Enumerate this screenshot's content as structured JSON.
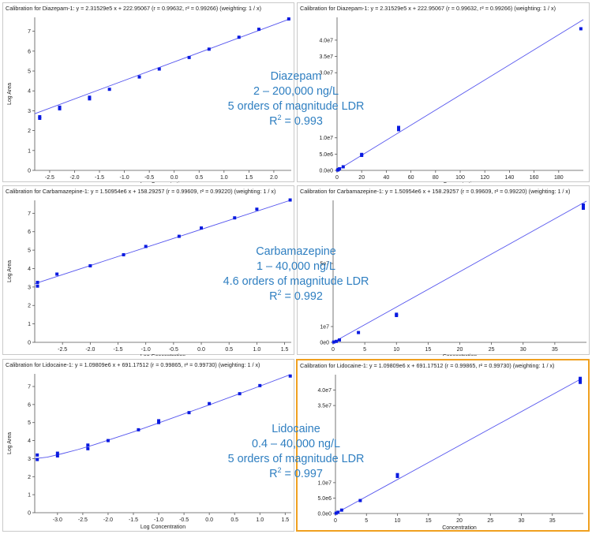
{
  "charts": [
    {
      "title": "Calibration for Diazepam-1: y = 2.31529e5 x + 222.95067 (r = 0.99632, r² = 0.99266) (weighting: 1 / x)",
      "compound": "Diazepam",
      "range": "2 – 200,000 ng/L",
      "ldr": "5 orders of magnitude LDR",
      "r2": "0.993",
      "log": {
        "title": "Calibration for Diazepam-1: y = 2.31529e5 x + 222.95067 (r = 0.99632, r² = 0.99266) (weighting: 1 / x)",
        "xlabel": "Log Concentration",
        "ylabel": "Log Area",
        "xlim": [
          -2.8,
          2.35
        ],
        "ylim": [
          0,
          7.7
        ],
        "xticks": [
          -2.5,
          -2.0,
          -1.5,
          -1.0,
          -0.5,
          0.0,
          0.5,
          1.0,
          1.5,
          2.0
        ],
        "xtick_labels": [
          "-2.5",
          "-2.0",
          "-1.5",
          "-1.0",
          "-0.5",
          "0.0",
          "0.5",
          "1.0",
          "1.5",
          "2.0"
        ],
        "yticks": [
          0,
          1,
          2,
          3,
          4,
          5,
          6,
          7
        ],
        "ytick_labels": [
          "0",
          "1",
          "2",
          "3",
          "4",
          "5",
          "6",
          "7"
        ],
        "line": [
          [
            -2.8,
            2.85
          ],
          [
            2.33,
            7.63
          ]
        ],
        "points": [
          [
            -2.7,
            2.62
          ],
          [
            -2.7,
            2.7
          ],
          [
            -2.3,
            3.1
          ],
          [
            -2.3,
            3.18
          ],
          [
            -1.7,
            3.6
          ],
          [
            -1.7,
            3.68
          ],
          [
            -1.3,
            4.08
          ],
          [
            -0.7,
            4.7
          ],
          [
            -0.3,
            5.1
          ],
          [
            0.3,
            5.68
          ],
          [
            0.7,
            6.1
          ],
          [
            1.3,
            6.7
          ],
          [
            1.7,
            7.1
          ],
          [
            2.3,
            7.62
          ]
        ]
      },
      "lin": {
        "title": "Calibration for Diazepam-1: y = 2.31529e5 x + 222.95067 (r = 0.99632, r² = 0.99266) (weighting: 1 / x)",
        "xlabel": "Concentration",
        "xlim": [
          0,
          200
        ],
        "ylim": [
          0,
          47000000.0
        ],
        "xticks": [
          0,
          20,
          40,
          60,
          80,
          100,
          120,
          140,
          160,
          180
        ],
        "xtick_labels": [
          "0",
          "20",
          "40",
          "60",
          "80",
          "100",
          "120",
          "140",
          "160",
          "180"
        ],
        "yticks": [
          0,
          5000000.0,
          10000000.0,
          30000000.0,
          35000000.0,
          40000000.0
        ],
        "ytick_labels": [
          "0.0e0",
          "5.0e6",
          "1.0e7",
          "3.0e7",
          "3.5e7",
          "4.0e7"
        ],
        "line": [
          [
            0,
            0
          ],
          [
            200,
            46300000.0
          ]
        ],
        "points": [
          [
            0.5,
            100000.0
          ],
          [
            1,
            250000.0
          ],
          [
            2,
            500000.0
          ],
          [
            5,
            1100000.0
          ],
          [
            20,
            4600000.0
          ],
          [
            20,
            4900000.0
          ],
          [
            50,
            12500000.0
          ],
          [
            50,
            13200000.0
          ],
          [
            198,
            43500000.0
          ]
        ]
      }
    },
    {
      "title": "Calibration for Carbamazepine-1: y = 1.50954e6 x + 158.29257 (r = 0.99609, r² = 0.99220) (weighting: 1 / x)",
      "compound": "Carbamazepine",
      "range": "1 – 40,000 ng/L",
      "ldr": "4.6 orders of magnitude LDR",
      "r2": "0.992",
      "log": {
        "title": "Calibration for Carbamazepine-1: y = 1.50954e6 x + 158.29257 (r = 0.99609, r² = 0.99220) (weighting: 1 / x)",
        "xlabel": "Log Concentration",
        "ylabel": "Log Area",
        "xlim": [
          -3.0,
          1.62
        ],
        "ylim": [
          0,
          7.7
        ],
        "xticks": [
          -2.5,
          -2.0,
          -1.5,
          -1.0,
          -0.5,
          0.0,
          0.5,
          1.0,
          1.5
        ],
        "xtick_labels": [
          "-2.5",
          "-2.0",
          "-1.5",
          "-1.0",
          "-0.5",
          "0.0",
          "0.5",
          "1.0",
          "1.5"
        ],
        "yticks": [
          0,
          1,
          2,
          3,
          4,
          5,
          6,
          7
        ],
        "ytick_labels": [
          "0",
          "1",
          "2",
          "3",
          "4",
          "5",
          "6",
          "7"
        ],
        "line": [
          [
            -3.0,
            3.18
          ],
          [
            1.6,
            7.7
          ]
        ],
        "points": [
          [
            -2.95,
            3.05
          ],
          [
            -2.95,
            3.25
          ],
          [
            -2.6,
            3.7
          ],
          [
            -2.0,
            4.15
          ],
          [
            -1.4,
            4.75
          ],
          [
            -1.0,
            5.2
          ],
          [
            -0.4,
            5.75
          ],
          [
            0.0,
            6.2
          ],
          [
            0.6,
            6.75
          ],
          [
            1.0,
            7.22
          ],
          [
            1.6,
            7.72
          ]
        ]
      },
      "lin": {
        "title": "Calibration for Carbamazepine-1: y = 1.50954e6 x + 158.29257 (r = 0.99609, r² = 0.99220) (weighting: 1 / x)",
        "xlabel": "Concentration",
        "xlim": [
          0,
          40
        ],
        "ylim": [
          0,
          90000000.0
        ],
        "xticks": [
          0,
          5,
          10,
          15,
          20,
          25,
          30,
          35
        ],
        "xtick_labels": [
          "0",
          "5",
          "10",
          "15",
          "20",
          "25",
          "30",
          "35"
        ],
        "yticks": [
          0,
          10000000.0,
          50000000.0
        ],
        "ytick_labels": [
          "0e0",
          "1e7",
          "5e7"
        ],
        "line": [
          [
            0,
            0
          ],
          [
            40,
            89500000.0
          ]
        ],
        "points": [
          [
            0.1,
            200000.0
          ],
          [
            0.5,
            600000.0
          ],
          [
            1,
            1500000.0
          ],
          [
            4,
            6200000.0
          ],
          [
            10,
            17000000.0
          ],
          [
            10,
            17800000.0
          ],
          [
            39.5,
            85000000.0
          ],
          [
            39.5,
            87000000.0
          ]
        ]
      }
    },
    {
      "title": "Calibration for Lidocaine-1: y = 1.09809e6 x + 691.17512 (r = 0.99865, r² = 0.99730) (weighting: 1 / x)",
      "compound": "Lidocaine",
      "range": "0.4 – 40,000 ng/L",
      "ldr": "5 orders of magnitude LDR",
      "r2": "0.997",
      "log": {
        "title": "Calibration for Lidocaine-1: y = 1.09809e6 x + 691.17512 (r = 0.99865, r² = 0.99730) (weighting: 1 / x)",
        "xlabel": "Log Concentration",
        "ylabel": "Log Area",
        "xlim": [
          -3.45,
          1.62
        ],
        "ylim": [
          0,
          7.7
        ],
        "xticks": [
          -3.0,
          -2.5,
          -2.0,
          -1.5,
          -1.0,
          -0.5,
          0.0,
          0.5,
          1.0,
          1.5
        ],
        "xtick_labels": [
          "-3.0",
          "-2.5",
          "-2.0",
          "-1.5",
          "-1.0",
          "-0.5",
          "0.0",
          "0.5",
          "1.0",
          "1.5"
        ],
        "yticks": [
          0,
          1,
          2,
          3,
          4,
          5,
          6,
          7
        ],
        "ytick_labels": [
          "0",
          "1",
          "2",
          "3",
          "4",
          "5",
          "6",
          "7"
        ],
        "curve": [
          [
            -3.45,
            3.0
          ],
          [
            -3.2,
            3.08
          ],
          [
            -2.9,
            3.28
          ],
          [
            -2.6,
            3.5
          ],
          [
            -2.3,
            3.75
          ],
          [
            -2.0,
            4.02
          ],
          [
            -1.5,
            4.48
          ],
          [
            -1.0,
            4.98
          ],
          [
            -0.5,
            5.48
          ],
          [
            0.0,
            5.98
          ],
          [
            0.5,
            6.5
          ],
          [
            1.0,
            7.02
          ],
          [
            1.6,
            7.66
          ]
        ],
        "points": [
          [
            -3.4,
            2.95
          ],
          [
            -3.4,
            3.2
          ],
          [
            -3.0,
            3.15
          ],
          [
            -3.0,
            3.3
          ],
          [
            -2.4,
            3.55
          ],
          [
            -2.4,
            3.75
          ],
          [
            -2.0,
            4.0
          ],
          [
            -1.4,
            4.6
          ],
          [
            -1.0,
            5.0
          ],
          [
            -1.0,
            5.1
          ],
          [
            -0.4,
            5.55
          ],
          [
            0.0,
            6.05
          ],
          [
            0.6,
            6.6
          ],
          [
            1.0,
            7.05
          ],
          [
            1.6,
            7.58
          ]
        ]
      },
      "lin": {
        "title": "Calibration for Lidocaine-1: y = 1.09809e6 x + 691.17512 (r = 0.99865, r² = 0.99730) (weighting: 1 / x)",
        "xlabel": "Concentration",
        "xlim": [
          0,
          40
        ],
        "ylim": [
          0,
          45000000.0
        ],
        "xticks": [
          0,
          5,
          10,
          15,
          20,
          25,
          30,
          35
        ],
        "xtick_labels": [
          "0",
          "5",
          "10",
          "15",
          "20",
          "25",
          "30",
          "35"
        ],
        "yticks": [
          0,
          5000000.0,
          10000000.0,
          35000000.0,
          40000000.0
        ],
        "ytick_labels": [
          "0.0e0",
          "5.0e6",
          "1.0e7",
          "3.5e7",
          "4.0e7"
        ],
        "line": [
          [
            0,
            0
          ],
          [
            39.6,
            43600000.0
          ]
        ],
        "points": [
          [
            0.1,
            100000.0
          ],
          [
            0.4,
            400000.0
          ],
          [
            1,
            1100000.0
          ],
          [
            4,
            4200000.0
          ],
          [
            10,
            12000000.0
          ],
          [
            10,
            12600000.0
          ],
          [
            39.5,
            42500000.0
          ],
          [
            39.5,
            43200000.0
          ],
          [
            39.5,
            43800000.0
          ]
        ]
      }
    }
  ],
  "chart_data": [
    {
      "type": "scatter",
      "title": "Calibration for Diazepam-1: y = 2.31529e5 x + 222.95067 (r = 0.99632, r² = 0.99266) (weighting: 1 / x)",
      "xlabel": "Log Concentration",
      "ylabel": "Log Area",
      "xlim": [
        -2.8,
        2.35
      ],
      "ylim": [
        0,
        7.7
      ],
      "series": [
        {
          "values": [
            [
              -2.7,
              2.62
            ],
            [
              -2.7,
              2.7
            ],
            [
              -2.3,
              3.1
            ],
            [
              -2.3,
              3.18
            ],
            [
              -1.7,
              3.6
            ],
            [
              -1.7,
              3.68
            ],
            [
              -1.3,
              4.08
            ],
            [
              -0.7,
              4.7
            ],
            [
              -0.3,
              5.1
            ],
            [
              0.3,
              5.68
            ],
            [
              0.7,
              6.1
            ],
            [
              1.3,
              6.7
            ],
            [
              1.7,
              7.1
            ],
            [
              2.3,
              7.62
            ]
          ]
        }
      ]
    },
    {
      "type": "scatter",
      "title": "Calibration for Diazepam-1: y = 2.31529e5 x + 222.95067 (r = 0.99632, r² = 0.99266) (weighting: 1 / x)",
      "xlabel": "Concentration",
      "xlim": [
        0,
        200
      ],
      "ylim": [
        0,
        47000000.0
      ],
      "series": [
        {
          "values": [
            [
              0.5,
              100000.0
            ],
            [
              1,
              250000.0
            ],
            [
              2,
              500000.0
            ],
            [
              5,
              1100000.0
            ],
            [
              20,
              4600000.0
            ],
            [
              20,
              4900000.0
            ],
            [
              50,
              12500000.0
            ],
            [
              50,
              13200000.0
            ],
            [
              198,
              43500000.0
            ]
          ]
        }
      ]
    },
    {
      "type": "scatter",
      "title": "Calibration for Carbamazepine-1: y = 1.50954e6 x + 158.29257 (r = 0.99609, r² = 0.99220) (weighting: 1 / x)",
      "xlabel": "Log Concentration",
      "ylabel": "Log Area",
      "xlim": [
        -3.0,
        1.62
      ],
      "ylim": [
        0,
        7.7
      ],
      "series": [
        {
          "values": [
            [
              -2.95,
              3.05
            ],
            [
              -2.95,
              3.25
            ],
            [
              -2.6,
              3.7
            ],
            [
              -2.0,
              4.15
            ],
            [
              -1.4,
              4.75
            ],
            [
              -1.0,
              5.2
            ],
            [
              -0.4,
              5.75
            ],
            [
              0.0,
              6.2
            ],
            [
              0.6,
              6.75
            ],
            [
              1.0,
              7.22
            ],
            [
              1.6,
              7.72
            ]
          ]
        }
      ]
    },
    {
      "type": "scatter",
      "title": "Calibration for Carbamazepine-1: y = 1.50954e6 x + 158.29257 (r = 0.99609, r² = 0.99220) (weighting: 1 / x)",
      "xlabel": "Concentration",
      "xlim": [
        0,
        40
      ],
      "ylim": [
        0,
        90000000.0
      ],
      "series": [
        {
          "values": [
            [
              0.1,
              200000.0
            ],
            [
              0.5,
              600000.0
            ],
            [
              1,
              1500000.0
            ],
            [
              4,
              6200000.0
            ],
            [
              10,
              17000000.0
            ],
            [
              10,
              17800000.0
            ],
            [
              39.5,
              85000000.0
            ],
            [
              39.5,
              87000000.0
            ]
          ]
        }
      ]
    },
    {
      "type": "scatter",
      "title": "Calibration for Lidocaine-1: y = 1.09809e6 x + 691.17512 (r = 0.99865, r² = 0.99730) (weighting: 1 / x)",
      "xlabel": "Log Concentration",
      "ylabel": "Log Area",
      "xlim": [
        -3.45,
        1.62
      ],
      "ylim": [
        0,
        7.7
      ],
      "series": [
        {
          "values": [
            [
              -3.4,
              2.95
            ],
            [
              -3.4,
              3.2
            ],
            [
              -3.0,
              3.15
            ],
            [
              -3.0,
              3.3
            ],
            [
              -2.4,
              3.55
            ],
            [
              -2.4,
              3.75
            ],
            [
              -2.0,
              4.0
            ],
            [
              -1.4,
              4.6
            ],
            [
              -1.0,
              5.0
            ],
            [
              -1.0,
              5.1
            ],
            [
              -0.4,
              5.55
            ],
            [
              0.0,
              6.05
            ],
            [
              0.6,
              6.6
            ],
            [
              1.0,
              7.05
            ],
            [
              1.6,
              7.58
            ]
          ]
        }
      ]
    },
    {
      "type": "scatter",
      "title": "Calibration for Lidocaine-1: y = 1.09809e6 x + 691.17512 (r = 0.99865, r² = 0.99730) (weighting: 1 / x)",
      "xlabel": "Concentration",
      "xlim": [
        0,
        40
      ],
      "ylim": [
        0,
        45000000.0
      ],
      "series": [
        {
          "values": [
            [
              0.1,
              100000.0
            ],
            [
              0.4,
              400000.0
            ],
            [
              1,
              1100000.0
            ],
            [
              4,
              4200000.0
            ],
            [
              10,
              12000000.0
            ],
            [
              10,
              12600000.0
            ],
            [
              39.5,
              42500000.0
            ],
            [
              39.5,
              43200000.0
            ],
            [
              39.5,
              43800000.0
            ]
          ]
        }
      ]
    }
  ],
  "colors": {
    "point": "#0a1be0",
    "line": "#5555ee",
    "annotation": "#2f7fc1",
    "highlight_border": "#f0a020"
  }
}
